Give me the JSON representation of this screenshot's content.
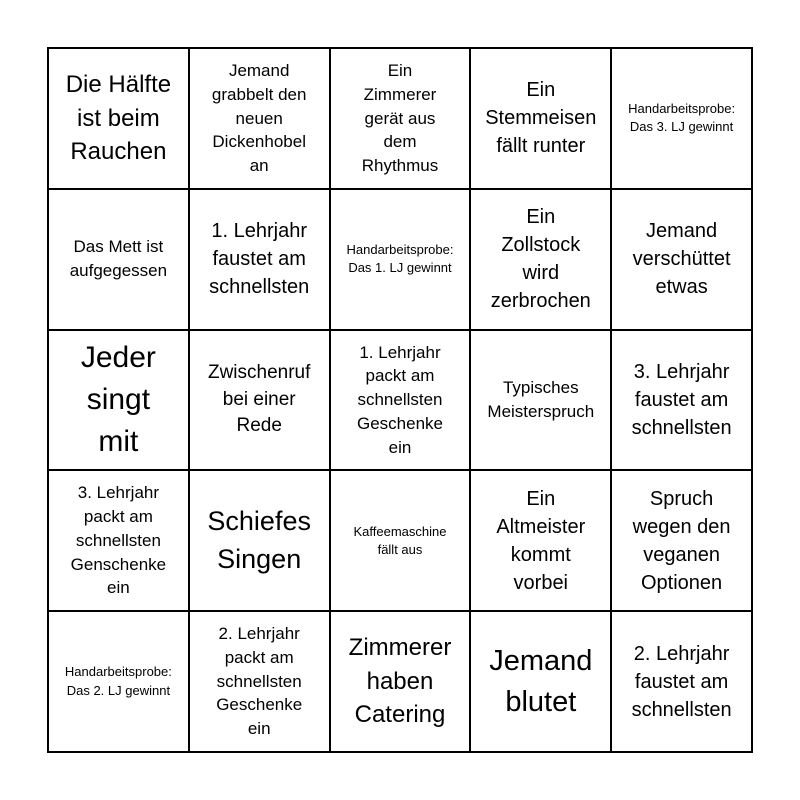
{
  "cells": [
    "Die Hälfte\nist beim\nRauchen",
    "Jemand\ngrabbelt den\nneuen\nDickenhobel\nan",
    "Ein\nZimmerer\ngerät aus\ndem\nRhythmus",
    "Ein\nStemmeisen\nfällt runter",
    "Handarbeitsprobe:\nDas 3. LJ gewinnt",
    "Das Mett ist\naufgegessen",
    "1. Lehrjahr\nfaustet am\nschnellsten",
    "Handarbeitsprobe:\nDas 1. LJ gewinnt",
    "Ein\nZollstock\nwird\nzerbrochen",
    "Jemand\nverschüttet\netwas",
    "Jeder\nsingt\nmit",
    "Zwischenruf\nbei einer\nRede",
    "1. Lehrjahr\npackt am\nschnellsten\nGeschenke\nein",
    "Typisches\nMeisterspruch",
    "3. Lehrjahr\nfaustet am\nschnellsten",
    "3. Lehrjahr\npackt am\nschnellsten\nGenschenke\nein",
    "Schiefes\nSingen",
    "Kaffeemaschine\nfällt aus",
    "Ein\nAltmeister\nkommt\nvorbei",
    "Spruch\nwegen den\nveganen\nOptionen",
    "Handarbeitsprobe:\nDas 2. LJ gewinnt",
    "2. Lehrjahr\npackt am\nschnellsten\nGeschenke\nein",
    "Zimmerer\nhaben\nCatering",
    "Jemand\nblutet",
    "2. Lehrjahr\nfaustet am\nschnellsten"
  ]
}
